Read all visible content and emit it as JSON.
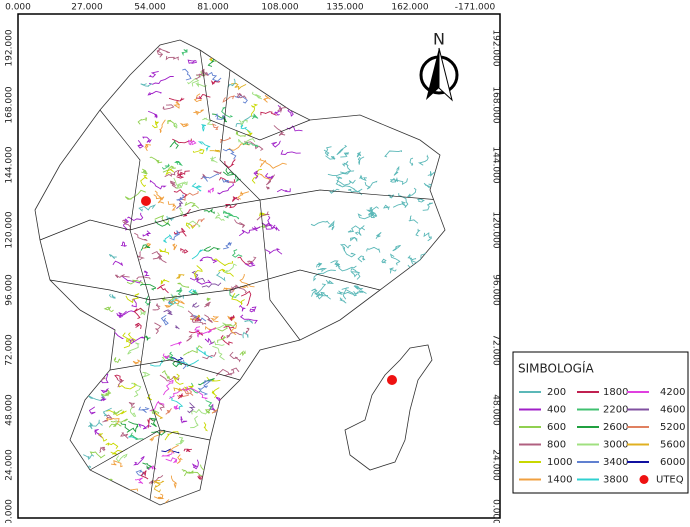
{
  "map": {
    "axis_top": [
      "0.000",
      "27.000",
      "54.000",
      "81.000",
      "108.000",
      "135.000",
      "162.000",
      "-171.000"
    ],
    "axis_left": [
      "192.000",
      "168.000",
      "144.000",
      "120.000",
      "96.000",
      "72.000",
      "48.000",
      "24.000",
      "0.000"
    ],
    "axis_right": [
      "192.000",
      "168.000",
      "144.000",
      "120.000",
      "96.000",
      "72.000",
      "48.000",
      "24.000",
      "0.000"
    ],
    "north": "N",
    "legend": {
      "title": "SIMBOLOGÍA",
      "items": [
        {
          "label": "200",
          "color": "#5bb8b8"
        },
        {
          "label": "400",
          "color": "#a020c8"
        },
        {
          "label": "600",
          "color": "#90d050"
        },
        {
          "label": "800",
          "color": "#b06080"
        },
        {
          "label": "1000",
          "color": "#c8d800"
        },
        {
          "label": "1400",
          "color": "#f0a040"
        },
        {
          "label": "1800",
          "color": "#c02050"
        },
        {
          "label": "2200",
          "color": "#40c070"
        },
        {
          "label": "2600",
          "color": "#20a040"
        },
        {
          "label": "3000",
          "color": "#a0e080"
        },
        {
          "label": "3400",
          "color": "#6080d0"
        },
        {
          "label": "3800",
          "color": "#30d0d0"
        },
        {
          "label": "4200",
          "color": "#e040e0"
        },
        {
          "label": "4600",
          "color": "#8050a0"
        },
        {
          "label": "5200",
          "color": "#e08060"
        },
        {
          "label": "5600",
          "color": "#e0b020"
        },
        {
          "label": "6000",
          "color": "#1010a0"
        }
      ],
      "point": {
        "label": "UTEQ",
        "color": "#ee1111"
      }
    }
  }
}
